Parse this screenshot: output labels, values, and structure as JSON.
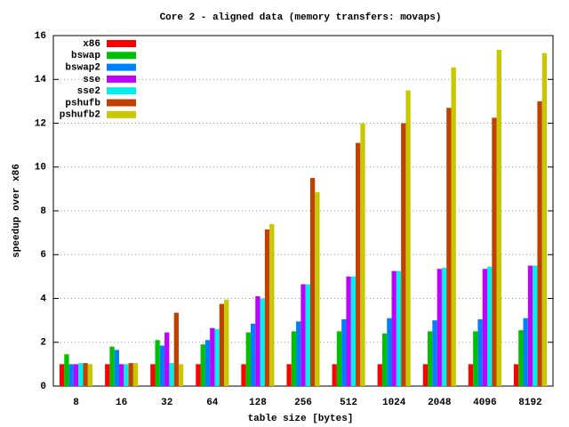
{
  "chart_data": {
    "type": "bar",
    "title": "Core 2 - aligned data (memory transfers: movaps)",
    "x_label": "table size [bytes]",
    "y_label": "speedup over x86",
    "categories": [
      "8",
      "16",
      "32",
      "64",
      "128",
      "256",
      "512",
      "1024",
      "2048",
      "4096",
      "8192"
    ],
    "series": [
      {
        "name": "x86",
        "color": "#ff0000",
        "values": [
          1,
          1,
          1,
          1,
          1,
          1,
          1,
          1,
          1,
          1,
          1
        ]
      },
      {
        "name": "bswap",
        "color": "#00c000",
        "values": [
          1.45,
          1.8,
          2.1,
          1.9,
          2.45,
          2.5,
          2.5,
          2.4,
          2.5,
          2.5,
          2.55
        ]
      },
      {
        "name": "bswap2",
        "color": "#0080ff",
        "values": [
          1.0,
          1.65,
          1.85,
          2.1,
          2.85,
          2.95,
          3.05,
          3.1,
          3.0,
          3.05,
          3.1
        ]
      },
      {
        "name": "sse",
        "color": "#c000ff",
        "values": [
          1.0,
          1.0,
          2.45,
          2.65,
          4.1,
          4.65,
          5.0,
          5.25,
          5.35,
          5.35,
          5.5
        ]
      },
      {
        "name": "sse2",
        "color": "#00eeee",
        "values": [
          1.05,
          1.0,
          1.05,
          2.6,
          4.0,
          4.65,
          5.0,
          5.25,
          5.4,
          5.45,
          5.5
        ]
      },
      {
        "name": "pshufb",
        "color": "#c04000",
        "values": [
          1.05,
          1.05,
          3.35,
          3.75,
          7.15,
          9.5,
          11.1,
          12.0,
          12.7,
          12.25,
          13.0
        ]
      },
      {
        "name": "pshufb2",
        "color": "#c8c800",
        "values": [
          1.0,
          1.05,
          1.0,
          3.95,
          7.4,
          8.85,
          12.0,
          13.5,
          14.55,
          15.35,
          15.2
        ]
      }
    ],
    "ylim": [
      0,
      16
    ],
    "yticks": [
      0,
      2,
      4,
      6,
      8,
      10,
      12,
      14,
      16
    ],
    "grid": true,
    "legend": "top-left"
  }
}
